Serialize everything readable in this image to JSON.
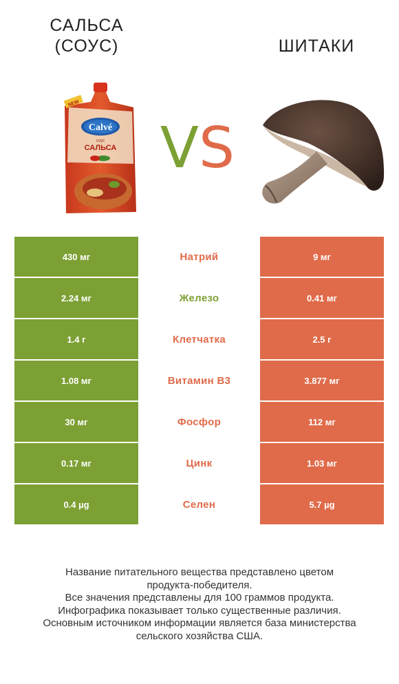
{
  "header": {
    "left_title_line1": "САЛЬСА",
    "left_title_line2": "(СОУС)",
    "right_title": "ШИТАКИ",
    "vs_v": "V",
    "vs_s": "S"
  },
  "product_left": {
    "brand": "Calvé",
    "badge": "NEW",
    "type": "соус",
    "name": "САЛЬСА"
  },
  "colors": {
    "left_winner": "#7da034",
    "right_winner": "#e06b4a"
  },
  "chart_data": {
    "type": "table",
    "columns": [
      "САЛЬСА (СОУС)",
      "",
      "ШИТАКИ"
    ],
    "rows": [
      {
        "nutrient": "Натрий",
        "left": "430 мг",
        "right": "9 мг",
        "winner": "right",
        "winner_color": "#e06b4a"
      },
      {
        "nutrient": "Железо",
        "left": "2.24 мг",
        "right": "0.41 мг",
        "winner": "left",
        "winner_color": "#7da034"
      },
      {
        "nutrient": "Клетчатка",
        "left": "1.4 г",
        "right": "2.5 г",
        "winner": "right",
        "winner_color": "#e06b4a"
      },
      {
        "nutrient": "Витамин B3",
        "left": "1.08 мг",
        "right": "3.877 мг",
        "winner": "right",
        "winner_color": "#e06b4a"
      },
      {
        "nutrient": "Фосфор",
        "left": "30 мг",
        "right": "112 мг",
        "winner": "right",
        "winner_color": "#e06b4a"
      },
      {
        "nutrient": "Цинк",
        "left": "0.17 мг",
        "right": "1.03 мг",
        "winner": "right",
        "winner_color": "#e06b4a"
      },
      {
        "nutrient": "Селен",
        "left": "0.4 µg",
        "right": "5.7 µg",
        "winner": "right",
        "winner_color": "#e06b4a"
      }
    ]
  },
  "footer": {
    "lines": [
      "Название питательного вещества представлено цветом",
      "продукта-победителя.",
      "Все значения представлены для 100 граммов продукта.",
      "Инфографика показывает только существенные различия.",
      "Основным источником информации является база министерства",
      "сельского хозяйства США."
    ]
  }
}
